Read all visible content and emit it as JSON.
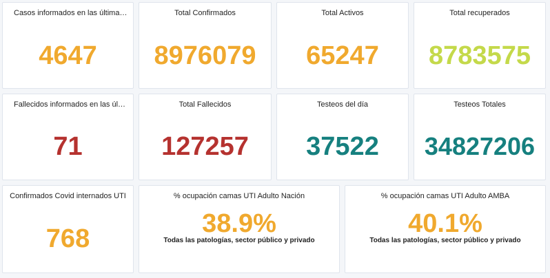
{
  "colors": {
    "orange": "#f0a92e",
    "lime": "#c4d94a",
    "red": "#b5322f",
    "teal": "#16807f"
  },
  "cards": {
    "cases_24h": {
      "title": "Casos informados en las últimas 2...",
      "value": "4647"
    },
    "total_confirmed": {
      "title": "Total Confirmados",
      "value": "8976079"
    },
    "total_active": {
      "title": "Total Activos",
      "value": "65247"
    },
    "total_recovered": {
      "title": "Total recuperados",
      "value": "8783575"
    },
    "deaths_24h": {
      "title": "Fallecidos informados en las últim...",
      "value": "71"
    },
    "total_deaths": {
      "title": "Total Fallecidos",
      "value": "127257"
    },
    "tests_day": {
      "title": "Testeos del día",
      "value": "37522"
    },
    "tests_total": {
      "title": "Testeos Totales",
      "value": "34827206"
    },
    "icu_confirmed": {
      "title": "Confirmados Covid internados UTI",
      "value": "768"
    },
    "icu_nation": {
      "title": "% ocupación camas UTI Adulto Nación",
      "value": "38.9%",
      "subtitle": "Todas las patologías, sector público y privado"
    },
    "icu_amba": {
      "title": "% ocupación camas UTI Adulto AMBA",
      "value": "40.1%",
      "subtitle": "Todas las patologías, sector público y privado"
    }
  }
}
